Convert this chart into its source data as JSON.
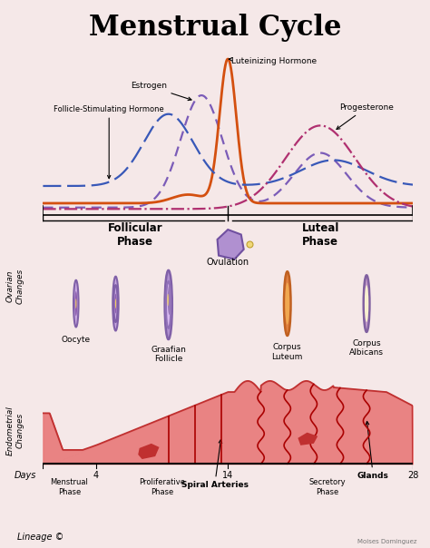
{
  "title": "Menstrual Cycle",
  "background_color": "#f5e8e8",
  "title_fontsize": 22,
  "title_fontweight": "bold",
  "lineage_text": "Lineage ©",
  "colors": {
    "estrogen": "#7b5cb8",
    "lh": "#d45010",
    "fsh": "#3858b8",
    "progesterone": "#b03070",
    "endometrium_fill": "#e87878",
    "endometrium_edge": "#c03030",
    "spiral_art": "#aa0000",
    "bg": "#f5e8e8"
  },
  "phase_labels": {
    "follicular": "Follicular\nPhase",
    "luteal": "Luteal\nPhase"
  }
}
